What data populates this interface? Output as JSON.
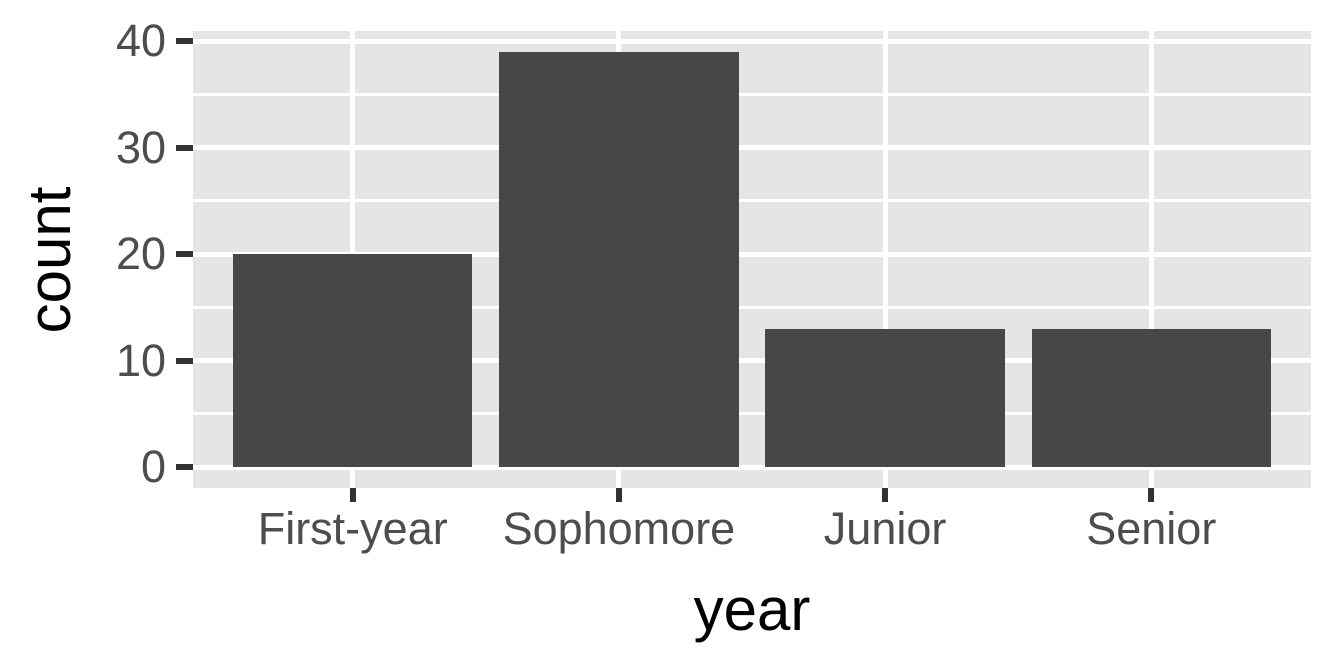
{
  "chart_data": {
    "type": "bar",
    "title": "",
    "xlabel": "year",
    "ylabel": "count",
    "categories": [
      "First-year",
      "Sophomore",
      "Junior",
      "Senior"
    ],
    "values": [
      20,
      39,
      13,
      13
    ],
    "y_ticks_major": [
      0,
      10,
      20,
      30,
      40
    ],
    "y_ticks_minor": [
      5,
      15,
      25,
      35
    ],
    "ylim_display": [
      -1.95,
      40.95
    ],
    "bar_relative_width": 0.9,
    "x_outer_padding": 0.6,
    "grid": "horizontal major+minor and vertical major white gridlines on gray panel",
    "legend": "none",
    "style": {
      "bar_color": "#474747",
      "panel_background": "#E5E5E5",
      "gridline_color": "#FFFFFF",
      "tick_mark_color": "#333333",
      "tick_label_color": "#4D4D4D",
      "axis_title_color": "#000000"
    }
  }
}
